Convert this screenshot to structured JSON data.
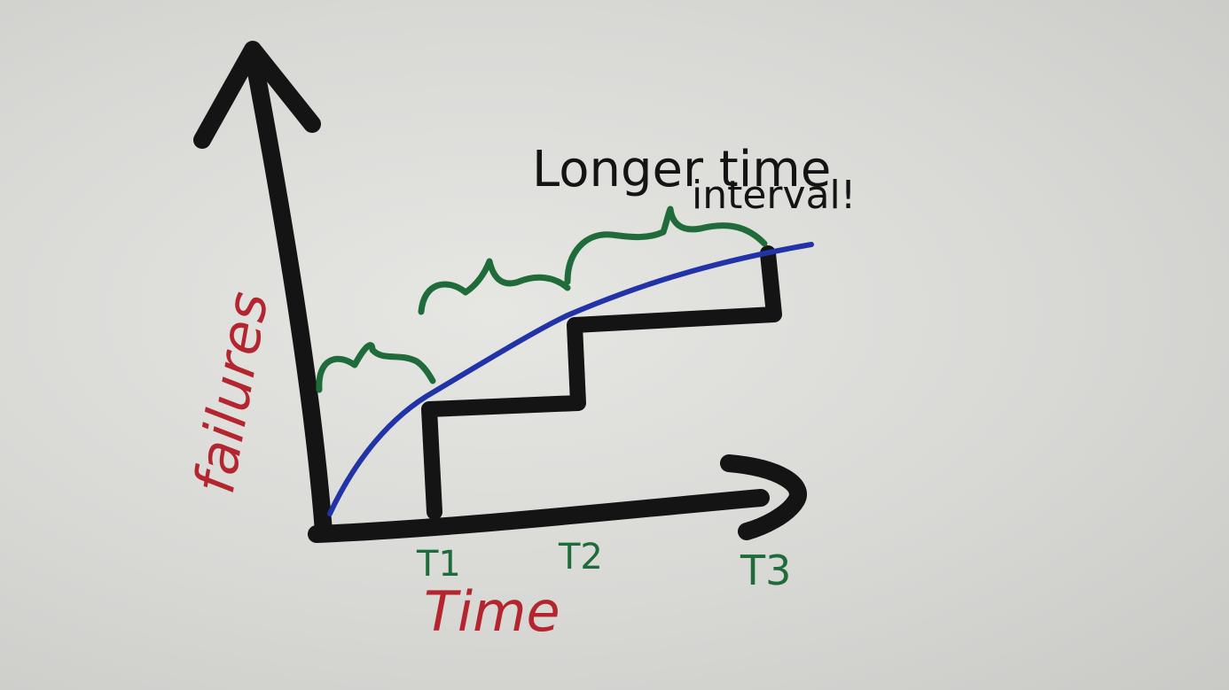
{
  "annotation": {
    "line1": "Longer time",
    "line2": "interval!"
  },
  "axes": {
    "y_label": "failures",
    "x_label": "Time"
  },
  "ticks": [
    "T1",
    "T2",
    "T3"
  ],
  "colors": {
    "ink_black": "#141414",
    "ink_blue": "#2233a8",
    "ink_green": "#1f6b3a",
    "ink_red": "#b3262f",
    "paper": "#dcdcd9"
  }
}
